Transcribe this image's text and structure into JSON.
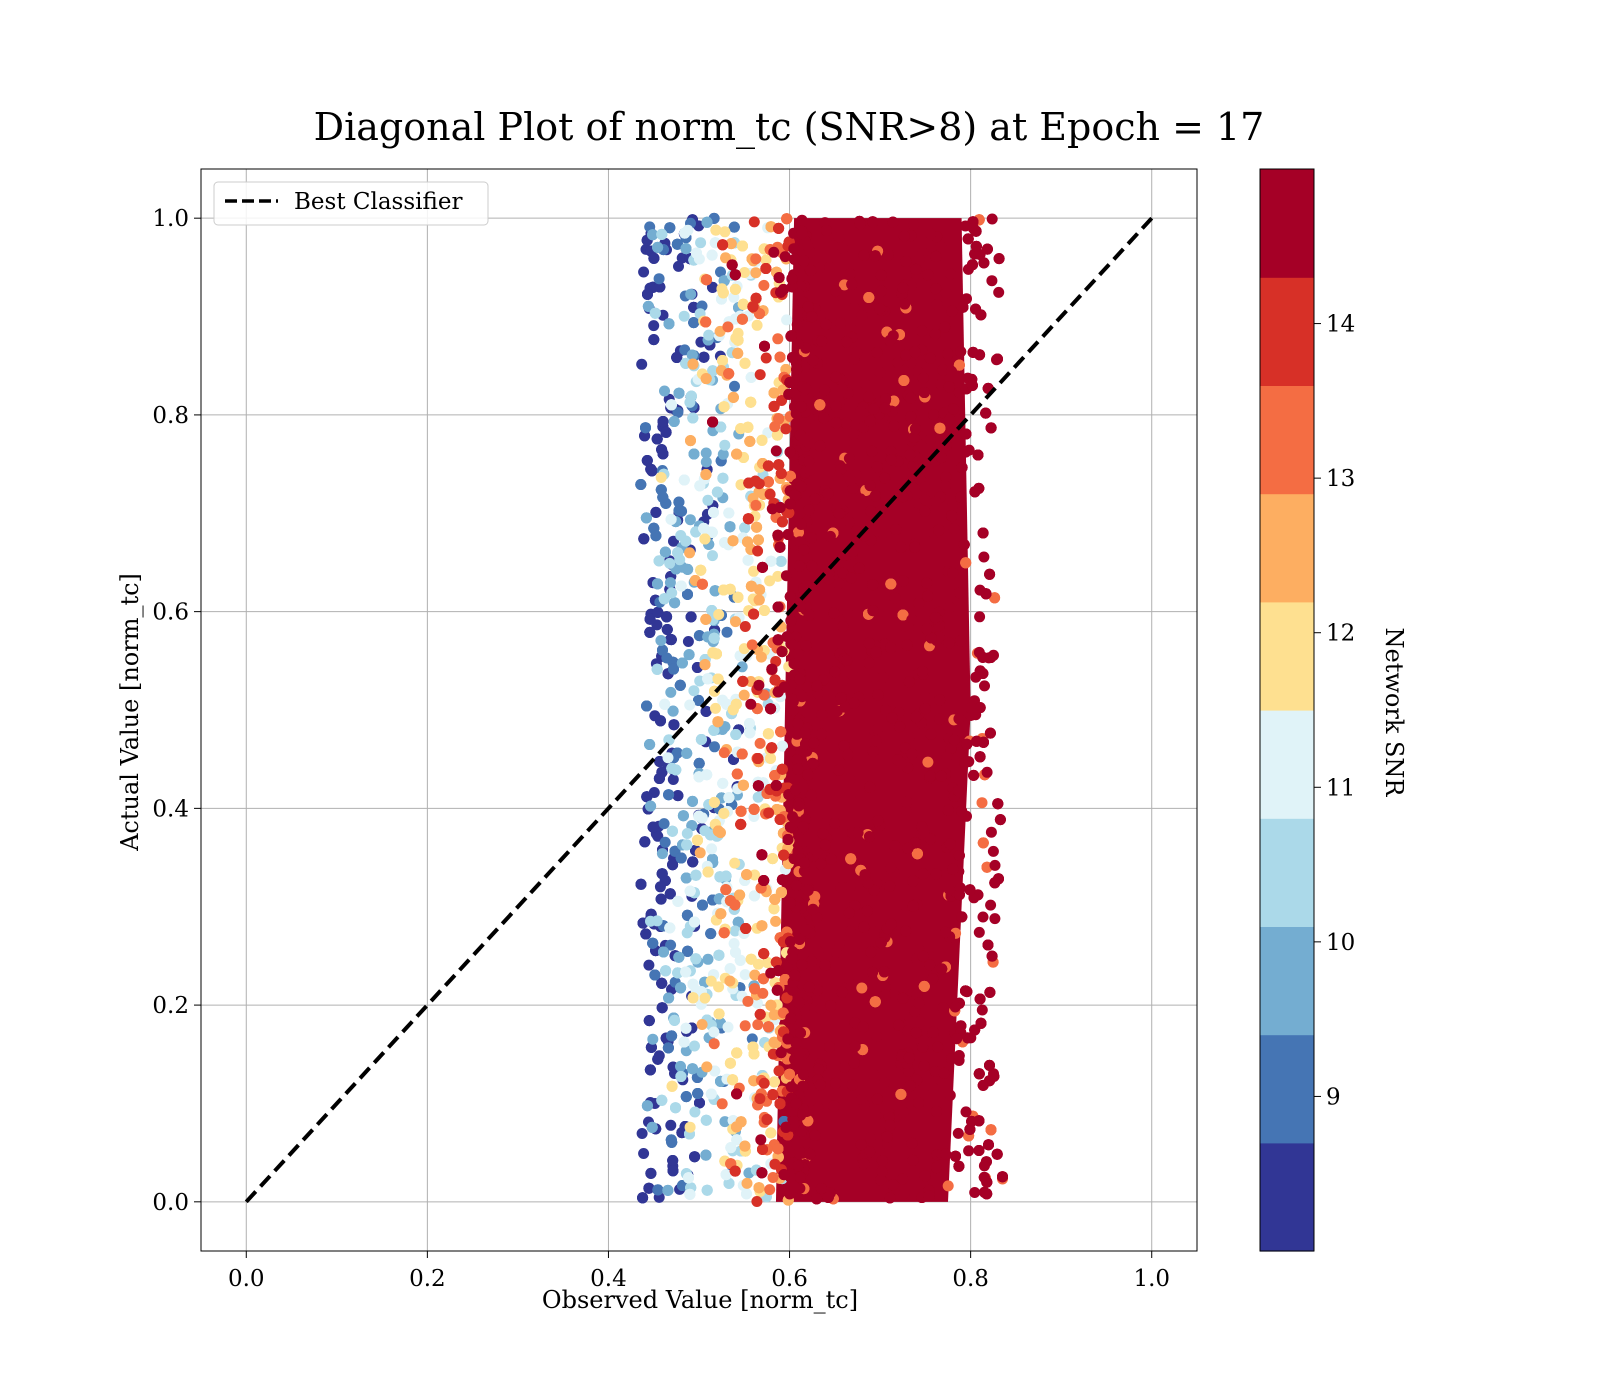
{
  "chart_data": {
    "type": "scatter",
    "title": "Diagonal Plot of norm_tc (SNR>8) at Epoch = 17",
    "xlabel": "Observed Value [norm_tc]",
    "ylabel": "Actual Value [norm_tc]",
    "xlim": [
      -0.05,
      1.05
    ],
    "ylim": [
      -0.05,
      1.05
    ],
    "xticks": [
      0.0,
      0.2,
      0.4,
      0.6,
      0.8,
      1.0
    ],
    "yticks": [
      0.0,
      0.2,
      0.4,
      0.6,
      0.8,
      1.0
    ],
    "xtick_labels": [
      "0.0",
      "0.2",
      "0.4",
      "0.6",
      "0.8",
      "1.0"
    ],
    "ytick_labels": [
      "0.0",
      "0.2",
      "0.4",
      "0.6",
      "0.8",
      "1.0"
    ],
    "grid": true,
    "legend": {
      "position": "top-left",
      "entries": [
        {
          "label": "Best Classifier",
          "style": "dashed",
          "color": "#000000"
        }
      ]
    },
    "reference_line": {
      "name": "Best Classifier",
      "x": [
        0.0,
        1.0
      ],
      "y": [
        0.0,
        1.0
      ]
    },
    "point_cloud": {
      "actual_value_range": [
        0.0,
        1.0
      ],
      "observed_value_range": [
        0.44,
        0.83
      ],
      "dense_core_observed_range": [
        0.6,
        0.8
      ],
      "snr_trend": "SNR increases with observed value; highest SNR points fill 0.6–0.8"
    },
    "colorbar": {
      "label": "Network SNR",
      "min": 8.0,
      "max": 15.0,
      "ticks": [
        9,
        10,
        11,
        12,
        13,
        14
      ],
      "tick_labels": [
        "9",
        "10",
        "11",
        "12",
        "13",
        "14"
      ],
      "colors": [
        "#313695",
        "#4575b4",
        "#74add1",
        "#abd9e9",
        "#e0f3f8",
        "#fee090",
        "#fdae61",
        "#f46d43",
        "#d73027",
        "#a50026"
      ],
      "bins": [
        8.0,
        8.7,
        9.4,
        10.1,
        10.8,
        11.5,
        12.2,
        12.9,
        13.6,
        14.3,
        15.0
      ]
    }
  }
}
